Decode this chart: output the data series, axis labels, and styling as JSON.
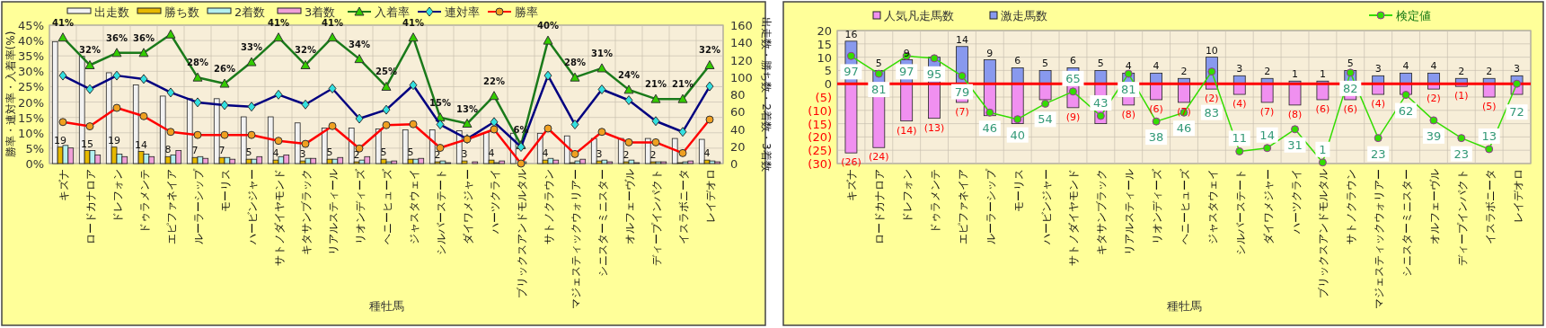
{
  "chart_data": [
    {
      "type": "bar",
      "xlabel": "種牡馬",
      "ylabel": "勝率・連対率・入着率(%)",
      "y2label": "出走数・勝ち数・2着数・3着数",
      "categories": [
        "キズナ",
        "ロードカナロア",
        "ドレフォン",
        "ドゥラメンテ",
        "エピファネイア",
        "ルーラーシップ",
        "モーリス",
        "ハービンジャー",
        "サトノダイヤモンド",
        "キタサンブラック",
        "リアルスティール",
        "リオンディーズ",
        "ヘニーヒューズ",
        "ジャスタウェイ",
        "シルバーステート",
        "ダイワメジャー",
        "ハーツクライ",
        "ブリックスアンドモルタル",
        "サトノクラウン",
        "マジェスティックウォリアー",
        "シニスターミニスター",
        "オルフェーヴル",
        "ディープインパクト",
        "イスラボニータ",
        "レイデオロ"
      ],
      "ylim": [
        0,
        45
      ],
      "yticks": [
        {
          "value": 0,
          "label": "0%"
        },
        {
          "value": 5,
          "label": "5%"
        },
        {
          "value": 10,
          "label": "10%"
        },
        {
          "value": 15,
          "label": "15%"
        },
        {
          "value": 20,
          "label": "20%"
        },
        {
          "value": 25,
          "label": "25%"
        },
        {
          "value": 30,
          "label": "30%"
        },
        {
          "value": 35,
          "label": "35%"
        },
        {
          "value": 40,
          "label": "40%"
        },
        {
          "value": 45,
          "label": "45%"
        }
      ],
      "y2lim": [
        0,
        160
      ],
      "y2ticks": [
        0,
        20,
        40,
        60,
        80,
        100,
        120,
        140,
        160
      ],
      "grid": true,
      "legend": "top",
      "series": [
        {
          "name": "出走数",
          "axis": "y2",
          "color": "#f2f2f2",
          "values": [
            141,
            124,
            105,
            91,
            78,
            75,
            75,
            54,
            54,
            47,
            41,
            41,
            40,
            39,
            39,
            38,
            36,
            35,
            35,
            32,
            29,
            29,
            29,
            29,
            28
          ]
        },
        {
          "name": "勝ち数",
          "axis": "y2",
          "color": "#e6b800",
          "values": [
            19,
            15,
            19,
            14,
            8,
            7,
            7,
            5,
            4,
            3,
            5,
            2,
            5,
            5,
            2,
            3,
            4,
            0,
            4,
            1,
            3,
            2,
            2,
            1,
            4
          ],
          "value_labels": [
            "19",
            "15",
            "19",
            "14",
            "8",
            "7",
            "7",
            "5",
            "4",
            "3",
            "5",
            "2",
            "5",
            "5",
            "2",
            "3",
            "4",
            null,
            "4",
            null,
            "3",
            "2",
            "2",
            null,
            "4"
          ]
        },
        {
          "name": "2着数",
          "axis": "y2",
          "color": "#b3f0f0",
          "values": [
            21,
            15,
            11,
            11,
            10,
            8,
            7,
            5,
            8,
            6,
            5,
            4,
            2,
            5,
            3,
            0,
            1,
            2,
            6,
            3,
            4,
            4,
            2,
            2,
            3
          ]
        },
        {
          "name": "3着数",
          "axis": "y2",
          "color": "#f0a0d8",
          "values": [
            18,
            10,
            8,
            8,
            15,
            6,
            5,
            8,
            10,
            6,
            7,
            8,
            3,
            6,
            1,
            2,
            3,
            0,
            4,
            5,
            2,
            1,
            2,
            3,
            2
          ]
        },
        {
          "name": "入着率",
          "type": "line",
          "axis": "y",
          "color": "#1a7a1a",
          "marker": "triangle",
          "values": [
            41,
            32,
            36,
            36,
            42,
            28,
            26,
            33,
            41,
            32,
            41,
            34,
            25,
            41,
            15,
            13,
            22,
            6,
            40,
            28,
            31,
            24,
            21,
            21,
            32
          ],
          "value_labels": [
            "41%",
            "32%",
            "36%",
            "36%",
            null,
            "28%",
            "26%",
            "33%",
            "41%",
            "32%",
            "41%",
            "34%",
            "25%",
            "41%",
            "15%",
            "13%",
            "22%",
            "6%",
            "40%",
            "28%",
            "31%",
            "24%",
            "21%",
            "21%",
            "32%"
          ]
        },
        {
          "name": "連対率",
          "type": "line",
          "axis": "y",
          "color": "#000080",
          "marker": "diamond",
          "values": [
            28.6,
            24.2,
            28.6,
            27.5,
            23.1,
            19.9,
            19.0,
            18.5,
            22.4,
            19.2,
            24.4,
            14.6,
            17.5,
            25.5,
            12.7,
            8.0,
            13.5,
            5.4,
            28.6,
            12.7,
            24.1,
            20.6,
            13.8,
            10.3,
            25.1
          ]
        },
        {
          "name": "勝率",
          "type": "line",
          "axis": "y",
          "color": "#ff0000",
          "marker": "circle",
          "values": [
            13.5,
            12.1,
            18.1,
            15.4,
            10.3,
            9.3,
            9.3,
            9.3,
            7.4,
            6.4,
            12.2,
            4.9,
            12.5,
            12.8,
            5.1,
            7.9,
            11.1,
            0,
            11.4,
            3.1,
            10.3,
            6.9,
            6.9,
            3.4,
            14.3
          ]
        }
      ]
    },
    {
      "type": "bar",
      "xlabel": "種牡馬",
      "stacked": true,
      "categories": [
        "キズナ",
        "ロードカナロア",
        "ドレフォン",
        "ドゥラメンテ",
        "エピファネイア",
        "ルーラーシップ",
        "モーリス",
        "ハービンジャー",
        "サトノダイヤモンド",
        "キタサンブラック",
        "リアルスティール",
        "リオンディーズ",
        "ヘニーヒューズ",
        "ジャスタウェイ",
        "シルバーステート",
        "ダイワメジャー",
        "ハーツクライ",
        "ブリックスアンドモルタル",
        "サトノクラウン",
        "マジェスティックウォリアー",
        "シニスターミニスター",
        "オルフェーヴル",
        "ディープインパクト",
        "イスラボニータ",
        "レイデオロ"
      ],
      "ylim": [
        -30,
        20
      ],
      "yticks": [
        {
          "value": 20,
          "label": "20"
        },
        {
          "value": 15,
          "label": "15"
        },
        {
          "value": 10,
          "label": "10"
        },
        {
          "value": 5,
          "label": "5"
        },
        {
          "value": 0,
          "label": "0"
        },
        {
          "value": -5,
          "label": "(5)"
        },
        {
          "value": -10,
          "label": "(10)"
        },
        {
          "value": -15,
          "label": "(15)"
        },
        {
          "value": -20,
          "label": "(20)"
        },
        {
          "value": -25,
          "label": "(25)"
        },
        {
          "value": -30,
          "label": "(30)"
        }
      ],
      "y2lim": [
        0,
        120
      ],
      "grid": true,
      "legend": "top",
      "ref_lines": [
        {
          "axis": "y",
          "value": 0,
          "color": "#ff0000"
        }
      ],
      "series": [
        {
          "name": "人気凡走馬数",
          "color": "#f090f0",
          "values": [
            -26,
            -24,
            -14,
            -13,
            -7,
            -12,
            -15,
            -6,
            -9,
            -15,
            -8,
            -6,
            -7,
            -2,
            -4,
            -7,
            -8,
            -6,
            -6,
            -4,
            -4,
            -2,
            -1,
            -5,
            -4
          ],
          "value_labels": [
            "(26)",
            "(24)",
            "(14)",
            "(13)",
            "(7)",
            null,
            null,
            null,
            "(9)",
            null,
            "(8)",
            "(6)",
            "(7)",
            "(2)",
            "(4)",
            "(7)",
            "(8)",
            "(6)",
            "(6)",
            "(4)",
            null,
            "(2)",
            "(1)",
            "(5)",
            null
          ]
        },
        {
          "name": "激走馬数",
          "color": "#8899ee",
          "values": [
            16,
            5,
            9,
            10,
            14,
            9,
            6,
            5,
            6,
            5,
            4,
            4,
            2,
            10,
            3,
            2,
            1,
            1,
            5,
            3,
            4,
            4,
            2,
            2,
            3
          ],
          "value_labels": [
            "16",
            "5",
            "9",
            null,
            "14",
            "9",
            "6",
            "5",
            "6",
            "5",
            "4",
            "4",
            "2",
            "10",
            "3",
            "2",
            "1",
            "1",
            "5",
            "3",
            "4",
            "4",
            "2",
            "2",
            "3"
          ]
        },
        {
          "name": "検定値",
          "type": "line",
          "axis": "y2",
          "color": "#33dd00",
          "marker": "circle",
          "values": [
            97,
            81,
            97,
            95,
            79,
            46,
            40,
            54,
            65,
            43,
            81,
            38,
            46,
            83,
            11,
            14,
            31,
            1,
            82,
            23,
            62,
            39,
            23,
            13,
            72
          ],
          "value_labels": [
            "97",
            "81",
            "97",
            "95",
            "79",
            "46",
            "40",
            "54",
            "65",
            "43",
            "81",
            "38",
            "46",
            "83",
            "11",
            "14",
            "31",
            "1",
            "82",
            "23",
            "62",
            "39",
            "23",
            "13",
            "72"
          ]
        }
      ]
    }
  ]
}
